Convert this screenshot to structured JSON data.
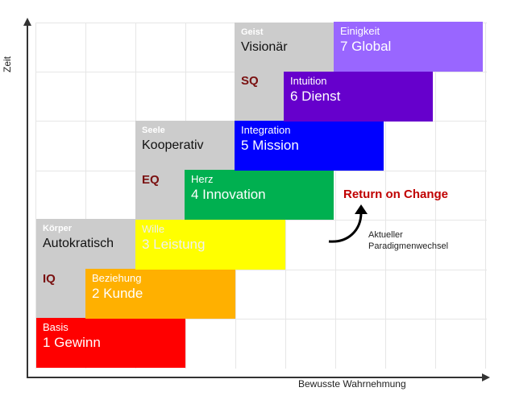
{
  "axes": {
    "y_label": "Zeit",
    "x_label": "Bewusste Wahrnehmung"
  },
  "levels": [
    {
      "key": "basis",
      "small": "Basis",
      "big": "1 Gewinn",
      "color": "#ff0000"
    },
    {
      "key": "beziehung",
      "small": "Beziehung",
      "big": "2 Kunde",
      "color": "#ffb000"
    },
    {
      "key": "wille",
      "small": "Wille",
      "big": "3 Leistung",
      "color": "#ffff00"
    },
    {
      "key": "herz",
      "small": "Herz",
      "big": "4 Innovation",
      "color": "#00b050"
    },
    {
      "key": "integration",
      "small": "Integration",
      "big": "5 Mission",
      "color": "#0000ff"
    },
    {
      "key": "intuition",
      "small": "Intuition",
      "big": "6 Dienst",
      "color": "#6600cc"
    },
    {
      "key": "einigkeit",
      "small": "Einigkeit",
      "big": "7 Global",
      "color": "#9966ff"
    }
  ],
  "groups": [
    {
      "small": "Körper",
      "big": "Autokratisch",
      "tag": "IQ"
    },
    {
      "small": "Seele",
      "big": "Kooperativ",
      "tag": "EQ"
    },
    {
      "small": "Geist",
      "big": "Visionär",
      "tag": "SQ"
    }
  ],
  "return_on_change": "Return on Change",
  "paradigm": [
    "Aktueller",
    "Paradigmenwechsel"
  ]
}
